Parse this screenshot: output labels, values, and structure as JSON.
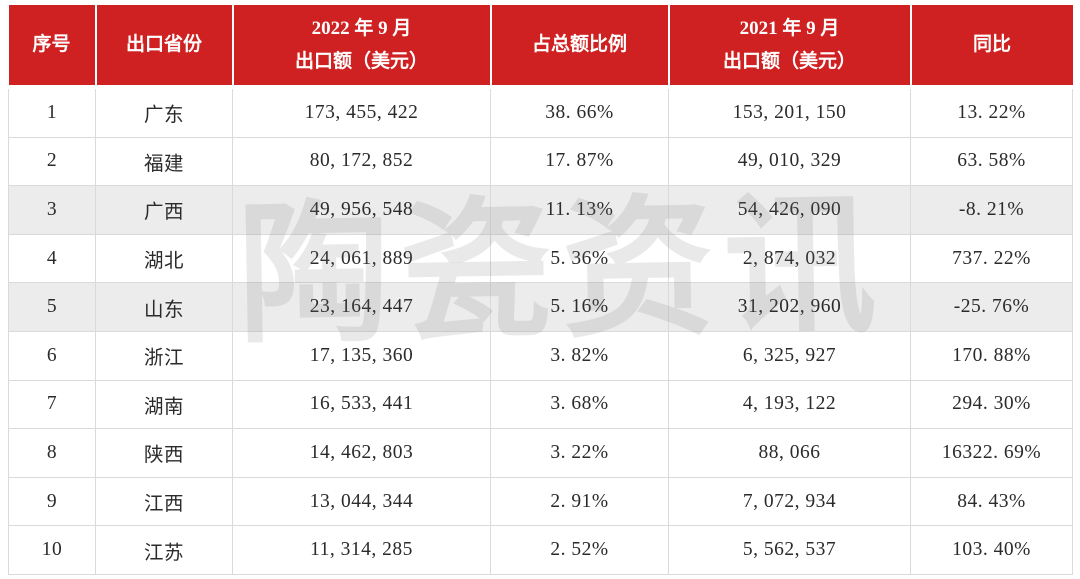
{
  "watermark": "陶瓷资讯",
  "colors": {
    "header_bg": "#cf2121",
    "header_text": "#ffffff",
    "row_alt_bg": "#ececec",
    "border": "#dadada",
    "body_text": "#2b2b2b"
  },
  "chart_data": {
    "type": "table",
    "title": "",
    "columns": [
      {
        "id": "index",
        "label": "序号",
        "label_line2": ""
      },
      {
        "id": "province",
        "label": "出口省份",
        "label_line2": ""
      },
      {
        "id": "export_2022_09",
        "label": "2022 年 9 月",
        "label_line2": "出口额（美元）"
      },
      {
        "id": "share_of_total",
        "label": "占总额比例",
        "label_line2": ""
      },
      {
        "id": "export_2021_09",
        "label": "2021 年 9 月",
        "label_line2": "出口额（美元）"
      },
      {
        "id": "yoy",
        "label": "同比",
        "label_line2": ""
      }
    ],
    "rows": [
      [
        "1",
        "广东",
        "173, 455, 422",
        "38. 66%",
        "153, 201, 150",
        "13. 22%"
      ],
      [
        "2",
        "福建",
        "80, 172, 852",
        "17. 87%",
        "49, 010, 329",
        "63. 58%"
      ],
      [
        "3",
        "广西",
        "49, 956, 548",
        "11. 13%",
        "54, 426, 090",
        "-8. 21%"
      ],
      [
        "4",
        "湖北",
        "24, 061, 889",
        "5. 36%",
        "2, 874, 032",
        "737. 22%"
      ],
      [
        "5",
        "山东",
        "23, 164, 447",
        "5. 16%",
        "31, 202, 960",
        "-25. 76%"
      ],
      [
        "6",
        "浙江",
        "17, 135, 360",
        "3. 82%",
        "6, 325, 927",
        "170. 88%"
      ],
      [
        "7",
        "湖南",
        "16, 533, 441",
        "3. 68%",
        "4, 193, 122",
        "294. 30%"
      ],
      [
        "8",
        "陕西",
        "14, 462, 803",
        "3. 22%",
        "88, 066",
        "16322. 69%"
      ],
      [
        "9",
        "江西",
        "13, 044, 344",
        "2. 91%",
        "7, 072, 934",
        "84. 43%"
      ],
      [
        "10",
        "江苏",
        "11, 314, 285",
        "2. 52%",
        "5, 562, 537",
        "103. 40%"
      ]
    ],
    "shaded_row_numbers": [
      3,
      5
    ],
    "legend_position": "none",
    "grid": true
  }
}
